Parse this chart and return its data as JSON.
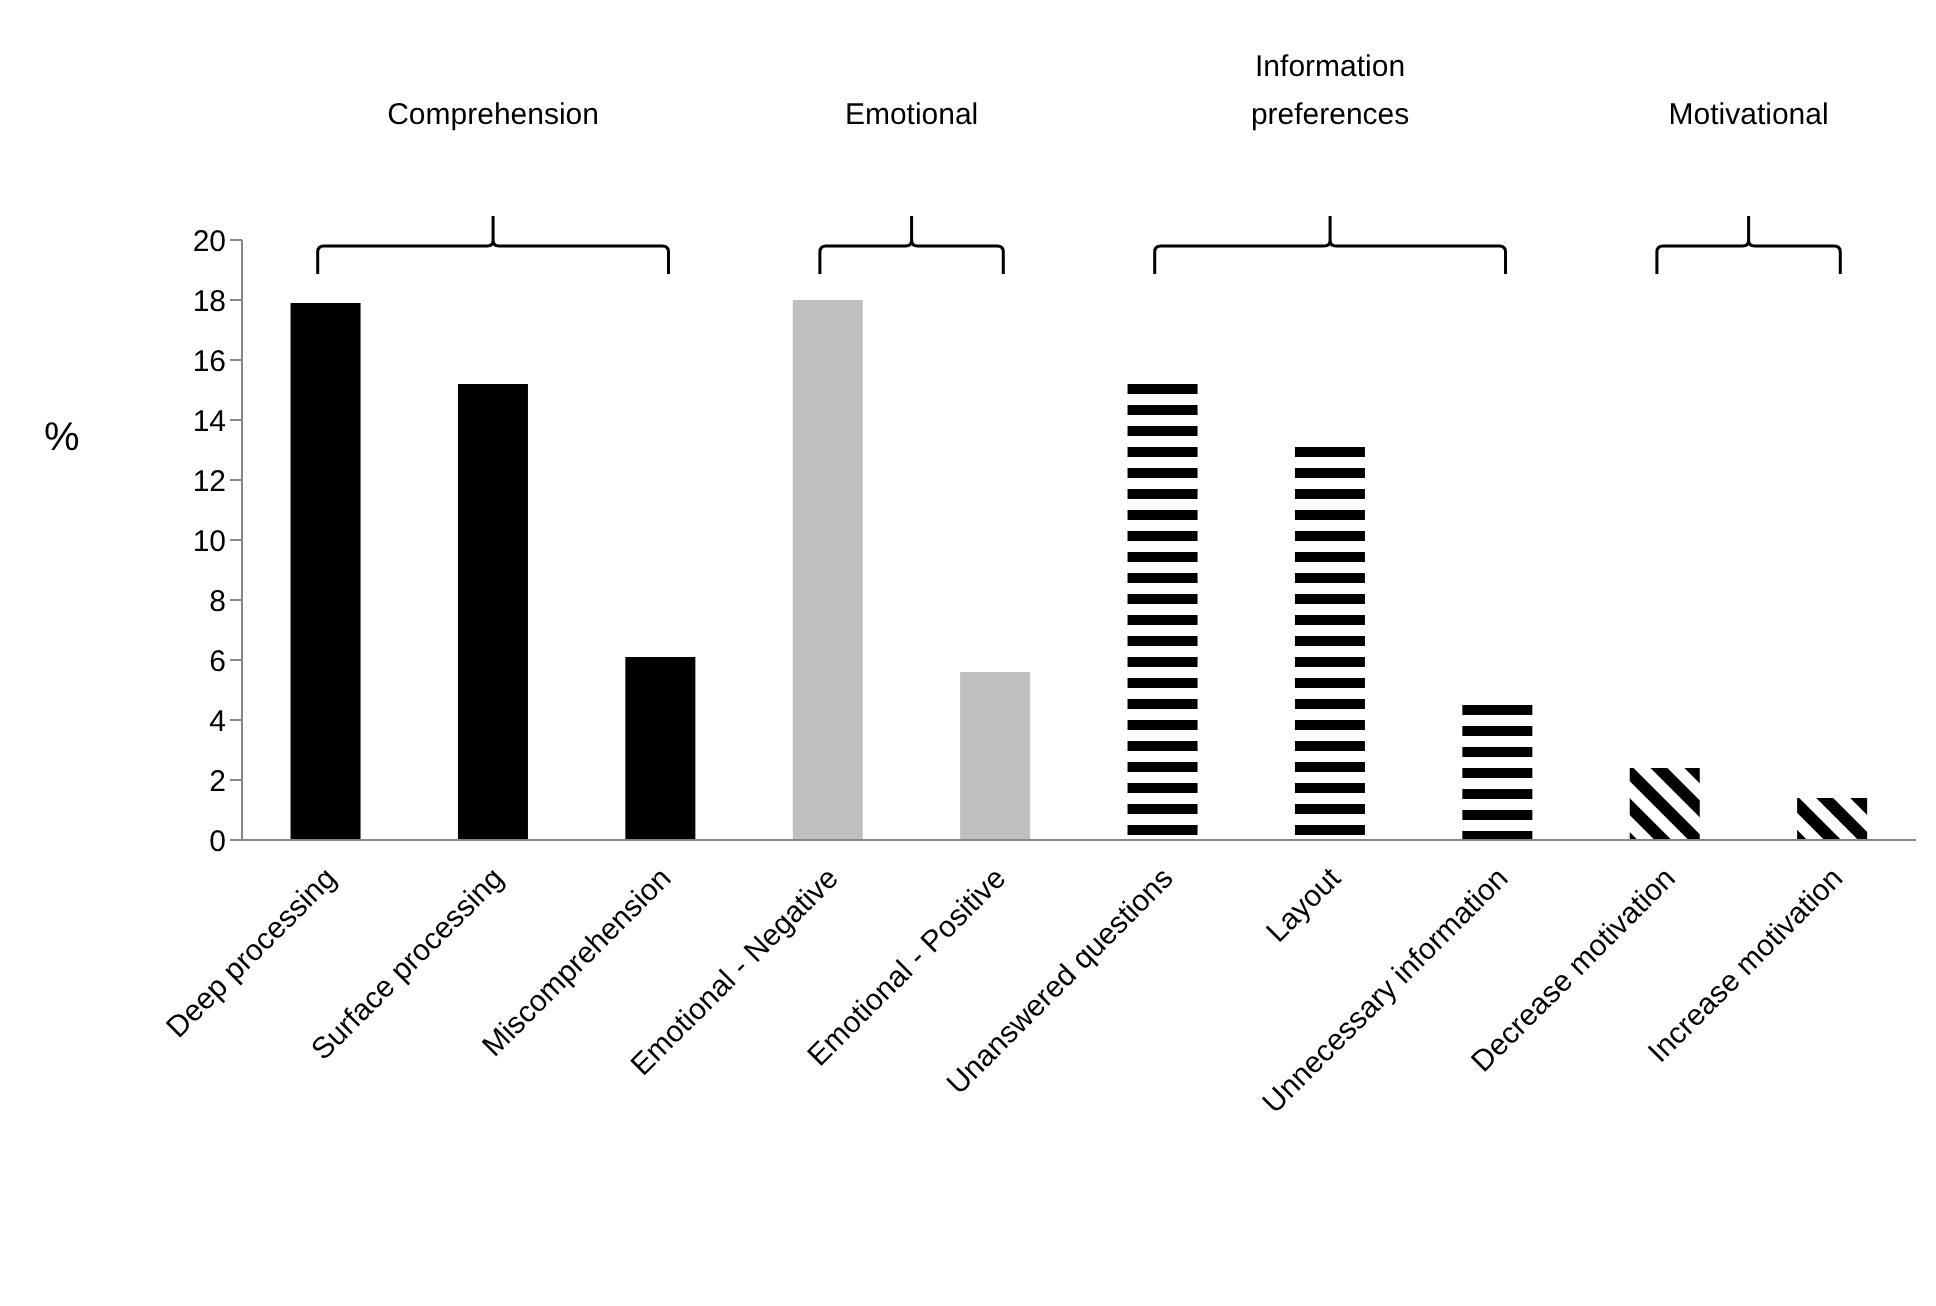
{
  "chart_data": {
    "type": "bar",
    "ylabel": "%",
    "categories": [
      "Deep processing",
      "Surface processing",
      "Miscomprehension",
      "Emotional - Negative",
      "Emotional - Positive",
      "Unanswered questions",
      "Layout",
      "Unnecessary information",
      "Decrease motivation",
      "Increase motivation"
    ],
    "series": [
      {
        "color": "#000000",
        "values": [
          17.9,
          15.2,
          6.1,
          null,
          null,
          null,
          null,
          null,
          null,
          null
        ]
      },
      {
        "color": "#bfbfbf",
        "values": [
          null,
          null,
          null,
          18.0,
          5.6,
          null,
          null,
          null,
          null,
          null
        ]
      },
      {
        "color": "#000000",
        "values": [
          null,
          null,
          null,
          null,
          null,
          15.2,
          13.1,
          4.5,
          null,
          null
        ]
      },
      {
        "color": "#000000",
        "values": [
          null,
          null,
          null,
          null,
          null,
          null,
          null,
          null,
          2.4,
          1.4
        ]
      }
    ],
    "stacked": true,
    "annotations": [
      "Comprehension",
      "Emotional",
      "Information preferences",
      "Motivational"
    ],
    "ylim": [
      0,
      20
    ],
    "yticks": [
      0,
      2,
      4,
      6,
      8,
      10,
      12,
      14,
      16,
      18,
      20
    ],
    "grid": false,
    "legend": false
  }
}
